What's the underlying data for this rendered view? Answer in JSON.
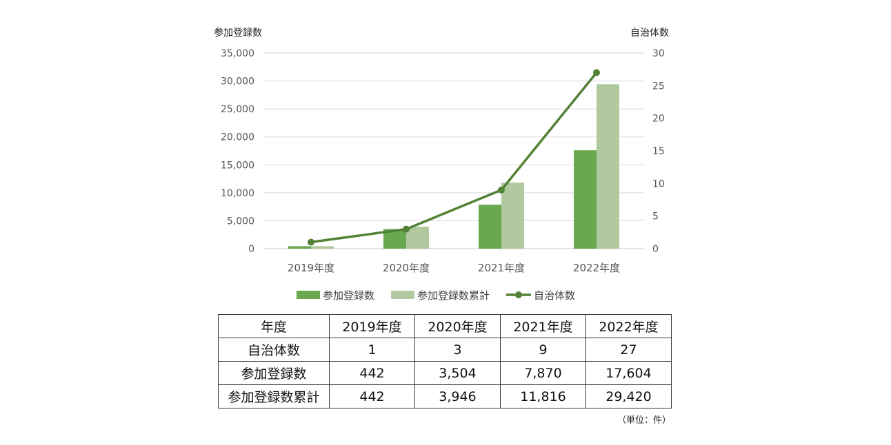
{
  "chart_data": {
    "type": "bar",
    "categories": [
      "2019年度",
      "2020年度",
      "2021年度",
      "2022年度"
    ],
    "left_axis_title": "参加登録数",
    "right_axis_title": "自治体数",
    "left_ylim": [
      0,
      35000
    ],
    "left_ticks": [
      "0",
      "5,000",
      "10,000",
      "15,000",
      "20,000",
      "25,000",
      "30,000",
      "35,000"
    ],
    "right_ylim": [
      0,
      30
    ],
    "right_ticks": [
      "0",
      "5",
      "10",
      "15",
      "20",
      "25",
      "30"
    ],
    "grid": "horizontal",
    "legend_position": "bottom",
    "series": [
      {
        "name": "参加登録数",
        "kind": "bar",
        "axis": "left",
        "color": "#6aa84f",
        "values": [
          442,
          3504,
          7870,
          17604
        ]
      },
      {
        "name": "参加登録数累計",
        "kind": "bar",
        "axis": "left",
        "color": "#b0c99f",
        "values": [
          442,
          3946,
          11816,
          29420
        ]
      },
      {
        "name": "自治体数",
        "kind": "line",
        "axis": "right",
        "color": "#538135",
        "values": [
          1,
          3,
          9,
          27
        ]
      }
    ]
  },
  "table": {
    "header": [
      "年度",
      "2019年度",
      "2020年度",
      "2021年度",
      "2022年度"
    ],
    "rows": [
      {
        "label": "自治体数",
        "values": [
          "1",
          "3",
          "9",
          "27"
        ]
      },
      {
        "label": "参加登録数",
        "values": [
          "442",
          "3,504",
          "7,870",
          "17,604"
        ]
      },
      {
        "label": "参加登録数累計",
        "values": [
          "442",
          "3,946",
          "11,816",
          "29,420"
        ]
      }
    ]
  },
  "unit_note": "（単位：件）"
}
